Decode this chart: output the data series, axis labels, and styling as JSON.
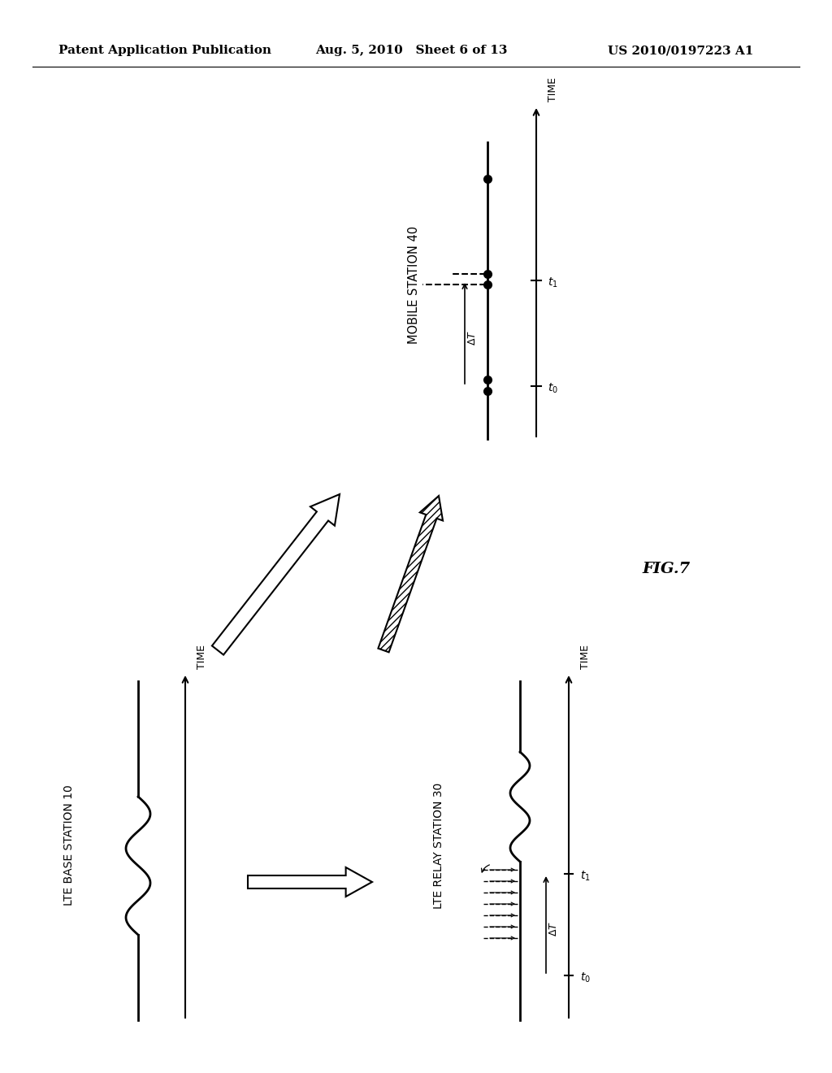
{
  "header_left": "Patent Application Publication",
  "header_center": "Aug. 5, 2010   Sheet 6 of 13",
  "header_right": "US 2010/0197223 A1",
  "fig_label": "FIG.7",
  "bg_color": "#ffffff",
  "text_color": "#000000",
  "ms40_label": "MOBILE STATION 40",
  "bs10_label": "LTE BASE STATION 10",
  "rs30_label": "LTE RELAY STATION 30",
  "time_label": "TIME"
}
